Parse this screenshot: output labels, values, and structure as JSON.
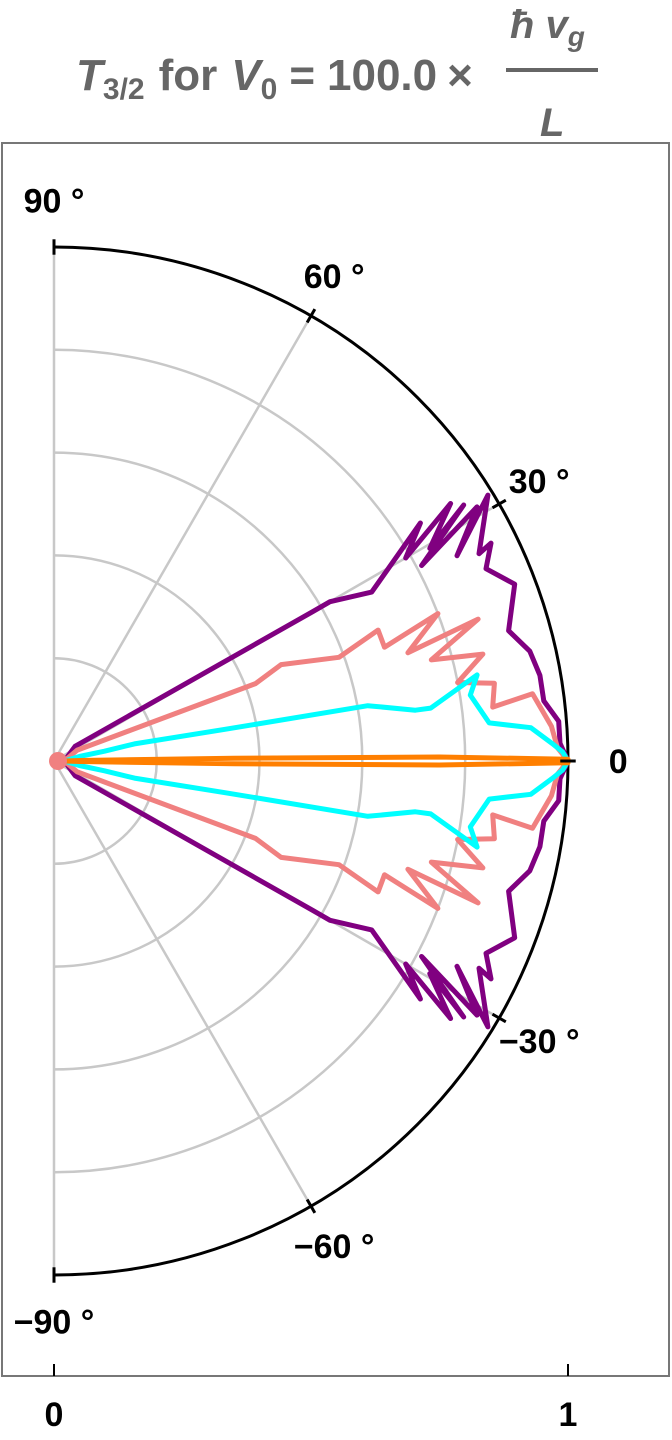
{
  "chart_data": {
    "type": "polar-line",
    "title": {
      "symbol": "T",
      "subscript": "3/2",
      "middle": "for",
      "variable": "V",
      "variable_subscript": "0",
      "equals": "=",
      "value": "100.0",
      "times": "×",
      "numerator": "ħ v",
      "numerator_subscript": "g",
      "denominator": "L"
    },
    "angle_ticks": [
      {
        "deg": 90,
        "label": "90",
        "suffix": "°"
      },
      {
        "deg": 60,
        "label": "60",
        "suffix": "°"
      },
      {
        "deg": 30,
        "label": "30",
        "suffix": "°"
      },
      {
        "deg": 0,
        "label": "0",
        "suffix": ""
      },
      {
        "deg": -30,
        "label": "−30",
        "suffix": "°"
      },
      {
        "deg": -60,
        "label": "−60",
        "suffix": "°"
      },
      {
        "deg": -90,
        "label": "−90",
        "suffix": "°"
      }
    ],
    "radial_ticks": [
      {
        "value": 0,
        "label": "0"
      },
      {
        "value": 1,
        "label": "1"
      }
    ],
    "radial_range": [
      0,
      1
    ],
    "angular_range": [
      -90,
      90
    ],
    "radial_gridlines": [
      0.2,
      0.4,
      0.6,
      0.8
    ],
    "angular_gridlines": [
      -60,
      -30,
      30,
      60,
      90,
      -90
    ],
    "series": [
      {
        "color": "#800080",
        "points": [
          [
            0,
            0.02
          ],
          [
            35,
            0.05
          ],
          [
            30,
            0.58
          ],
          [
            30,
            0.62
          ],
          [
            28,
            0.7
          ],
          [
            33,
            0.85
          ],
          [
            30,
            0.79
          ],
          [
            33,
            0.92
          ],
          [
            29.5,
            0.84
          ],
          [
            32,
            0.94
          ],
          [
            28,
            0.81
          ],
          [
            31,
            0.96
          ],
          [
            27,
            0.88
          ],
          [
            31.5,
            0.99
          ],
          [
            26,
            0.92
          ],
          [
            26.5,
            0.95
          ],
          [
            24,
            0.92
          ],
          [
            21,
            0.96
          ],
          [
            16,
            0.92
          ],
          [
            13,
            0.95
          ],
          [
            10,
            0.96
          ],
          [
            7,
            0.96
          ],
          [
            4.5,
            0.985
          ],
          [
            2,
            0.985
          ],
          [
            0,
            1.0
          ]
        ]
      },
      {
        "color": "#f08080",
        "points": [
          [
            0,
            0.02
          ],
          [
            25,
            0.05
          ],
          [
            21,
            0.42
          ],
          [
            23,
            0.48
          ],
          [
            20,
            0.59
          ],
          [
            22,
            0.68
          ],
          [
            19,
            0.68
          ],
          [
            21,
            0.8
          ],
          [
            17,
            0.72
          ],
          [
            18.5,
            0.87
          ],
          [
            15,
            0.76
          ],
          [
            14,
            0.86
          ],
          [
            11,
            0.8
          ],
          [
            10,
            0.87
          ],
          [
            7,
            0.86
          ],
          [
            8,
            0.94
          ],
          [
            4,
            0.97
          ],
          [
            1.5,
            0.98
          ],
          [
            0,
            1.0
          ]
        ]
      },
      {
        "color": "#00ffff",
        "points": [
          [
            0,
            0.02
          ],
          [
            10,
            0.05
          ],
          [
            11,
            0.1
          ],
          [
            12,
            0.16
          ],
          [
            10.5,
            0.34
          ],
          [
            10,
            0.62
          ],
          [
            8,
            0.71
          ],
          [
            8,
            0.74
          ],
          [
            11.5,
            0.84
          ],
          [
            9,
            0.82
          ],
          [
            5,
            0.85
          ],
          [
            4,
            0.93
          ],
          [
            2,
            0.97
          ],
          [
            1,
            0.99
          ],
          [
            0,
            1.0
          ]
        ]
      },
      {
        "color": "#ff7f00",
        "points": [
          [
            0,
            0.02
          ],
          [
            1.2,
            0.05
          ],
          [
            0.9,
            0.35
          ],
          [
            0.6,
            0.75
          ],
          [
            0.2,
            1.0
          ],
          [
            0,
            1.0
          ]
        ]
      }
    ]
  }
}
